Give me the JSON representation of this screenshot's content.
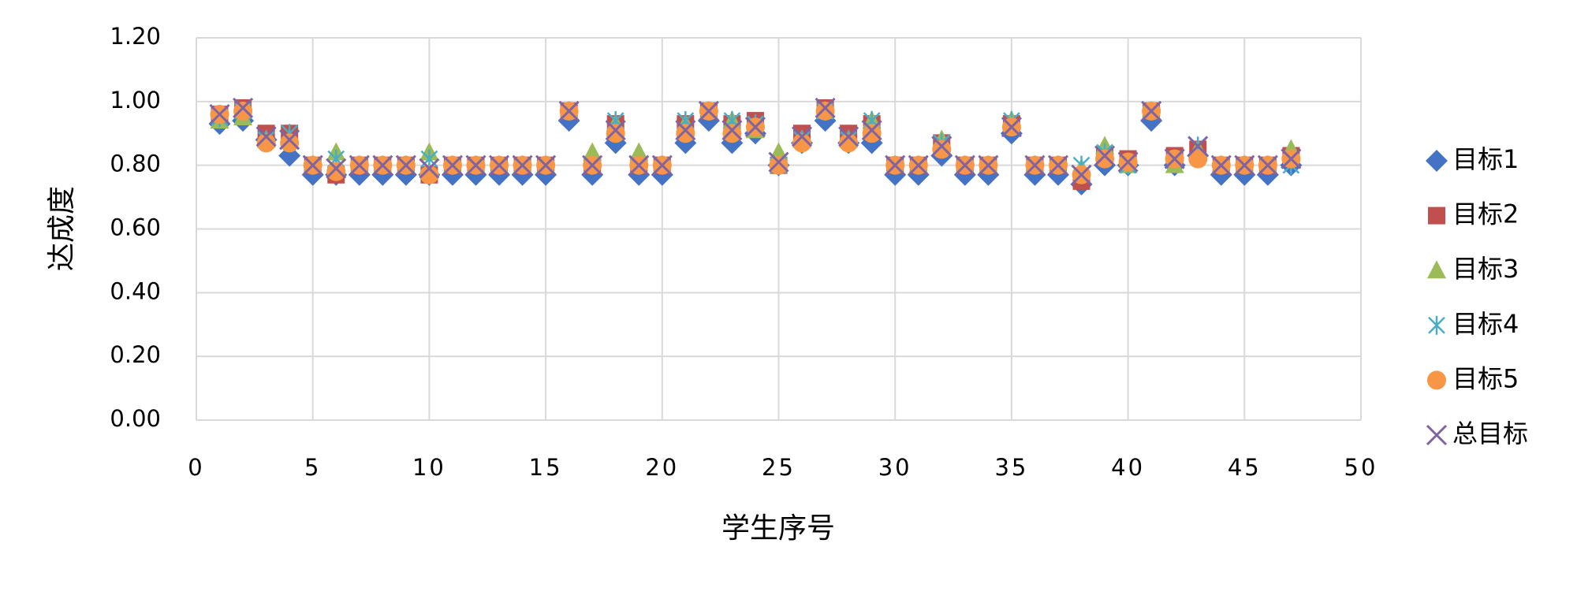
{
  "chart_data": {
    "type": "scatter",
    "xlabel": "学生序号",
    "ylabel": "达成度",
    "x": [
      1,
      2,
      3,
      4,
      5,
      6,
      7,
      8,
      9,
      10,
      11,
      12,
      13,
      14,
      15,
      16,
      17,
      18,
      19,
      20,
      21,
      22,
      23,
      24,
      25,
      26,
      27,
      28,
      29,
      30,
      31,
      32,
      33,
      34,
      35,
      36,
      37,
      38,
      39,
      40,
      41,
      42,
      43,
      44,
      45,
      46,
      47
    ],
    "series": [
      {
        "name": "目标1",
        "color": "#4472c4",
        "marker": "diamond",
        "values": [
          0.93,
          0.94,
          0.88,
          0.83,
          0.77,
          0.77,
          0.77,
          0.77,
          0.77,
          0.77,
          0.77,
          0.77,
          0.77,
          0.77,
          0.77,
          0.94,
          0.77,
          0.87,
          0.77,
          0.77,
          0.87,
          0.94,
          0.87,
          0.9,
          0.8,
          0.87,
          0.94,
          0.87,
          0.87,
          0.77,
          0.77,
          0.83,
          0.77,
          0.77,
          0.9,
          0.77,
          0.77,
          0.74,
          0.8,
          0.8,
          0.94,
          0.8,
          0.83,
          0.77,
          0.77,
          0.77,
          0.8
        ]
      },
      {
        "name": "目标2",
        "color": "#c0504d",
        "marker": "square",
        "values": [
          0.96,
          0.98,
          0.9,
          0.9,
          0.8,
          0.77,
          0.8,
          0.8,
          0.8,
          0.77,
          0.8,
          0.8,
          0.8,
          0.8,
          0.8,
          0.97,
          0.8,
          0.93,
          0.8,
          0.8,
          0.93,
          0.97,
          0.93,
          0.94,
          0.8,
          0.9,
          0.98,
          0.9,
          0.93,
          0.8,
          0.8,
          0.87,
          0.8,
          0.8,
          0.93,
          0.8,
          0.8,
          0.75,
          0.83,
          0.82,
          0.97,
          0.83,
          0.85,
          0.8,
          0.8,
          0.8,
          0.83
        ]
      },
      {
        "name": "目标3",
        "color": "#9bbb59",
        "marker": "triangle",
        "values": [
          0.94,
          0.95,
          0.88,
          0.88,
          0.8,
          0.84,
          0.8,
          0.8,
          0.8,
          0.84,
          0.8,
          0.8,
          0.8,
          0.8,
          0.8,
          0.97,
          0.84,
          0.93,
          0.84,
          0.8,
          0.93,
          0.97,
          0.94,
          0.91,
          0.84,
          0.88,
          0.97,
          0.88,
          0.94,
          0.8,
          0.8,
          0.88,
          0.8,
          0.8,
          0.94,
          0.8,
          0.8,
          0.79,
          0.86,
          0.8,
          0.97,
          0.8,
          0.85,
          0.8,
          0.8,
          0.8,
          0.85
        ]
      },
      {
        "name": "目标4",
        "color": "#4bacc6",
        "marker": "star",
        "values": [
          0.95,
          0.97,
          0.88,
          0.9,
          0.8,
          0.82,
          0.8,
          0.8,
          0.8,
          0.82,
          0.8,
          0.8,
          0.8,
          0.8,
          0.8,
          0.97,
          0.8,
          0.94,
          0.8,
          0.8,
          0.94,
          0.97,
          0.94,
          0.93,
          0.8,
          0.88,
          0.97,
          0.88,
          0.94,
          0.8,
          0.8,
          0.87,
          0.8,
          0.8,
          0.94,
          0.8,
          0.8,
          0.8,
          0.84,
          0.8,
          0.97,
          0.82,
          0.86,
          0.8,
          0.8,
          0.8,
          0.8
        ]
      },
      {
        "name": "目标5",
        "color": "#f79646",
        "marker": "circle",
        "values": [
          0.96,
          0.97,
          0.87,
          0.87,
          0.8,
          0.78,
          0.8,
          0.8,
          0.8,
          0.77,
          0.8,
          0.8,
          0.8,
          0.8,
          0.8,
          0.97,
          0.8,
          0.9,
          0.8,
          0.8,
          0.9,
          0.97,
          0.9,
          0.92,
          0.8,
          0.87,
          0.97,
          0.87,
          0.9,
          0.8,
          0.8,
          0.85,
          0.8,
          0.8,
          0.92,
          0.8,
          0.8,
          0.77,
          0.82,
          0.81,
          0.97,
          0.82,
          0.82,
          0.8,
          0.8,
          0.8,
          0.82
        ]
      },
      {
        "name": "总目标",
        "color": "#8064a2",
        "marker": "cross",
        "values": [
          0.96,
          0.98,
          0.89,
          0.88,
          0.8,
          0.79,
          0.8,
          0.8,
          0.8,
          0.79,
          0.8,
          0.8,
          0.8,
          0.8,
          0.8,
          0.97,
          0.8,
          0.91,
          0.8,
          0.8,
          0.91,
          0.97,
          0.91,
          0.92,
          0.81,
          0.89,
          0.98,
          0.89,
          0.91,
          0.8,
          0.8,
          0.86,
          0.8,
          0.8,
          0.92,
          0.8,
          0.8,
          0.77,
          0.83,
          0.81,
          0.97,
          0.82,
          0.86,
          0.8,
          0.8,
          0.8,
          0.82
        ]
      }
    ],
    "xlim": [
      0,
      50
    ],
    "xticks": [
      0,
      5,
      10,
      15,
      20,
      25,
      30,
      35,
      40,
      45,
      50
    ],
    "ylim": [
      0,
      1.2
    ],
    "yticks": [
      {
        "value": 0,
        "label": "0.00"
      },
      {
        "value": 0.2,
        "label": "0.20"
      },
      {
        "value": 0.4,
        "label": "0.40"
      },
      {
        "value": 0.6,
        "label": "0.60"
      },
      {
        "value": 0.8,
        "label": "0.80"
      },
      {
        "value": 1.0,
        "label": "1.00"
      },
      {
        "value": 1.2,
        "label": "1.20"
      }
    ],
    "grid": true,
    "legend": "right"
  }
}
